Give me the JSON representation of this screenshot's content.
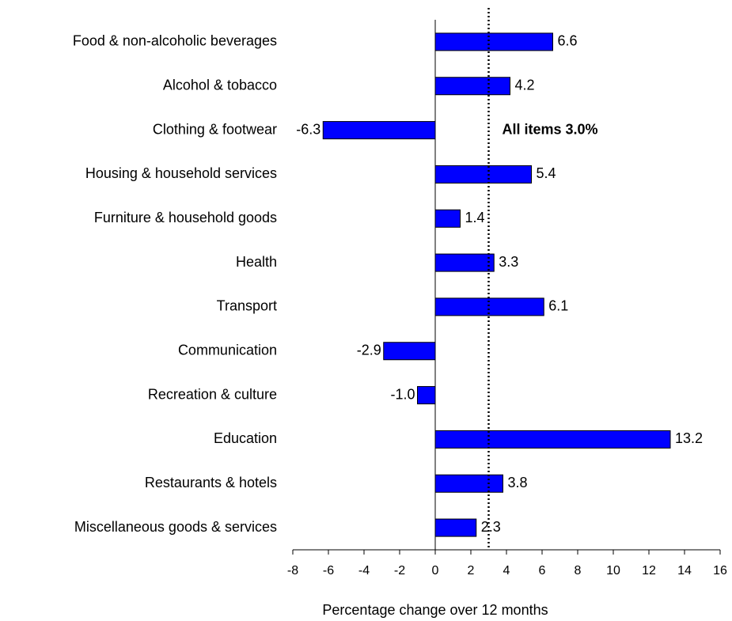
{
  "chart_data": {
    "type": "hbar",
    "categories": [
      "Food & non-alcoholic beverages",
      "Alcohol & tobacco",
      "Clothing & footwear",
      "Housing & household services",
      "Furniture & household goods",
      "Health",
      "Transport",
      "Communication",
      "Recreation & culture",
      "Education",
      "Restaurants & hotels",
      "Miscellaneous goods & services"
    ],
    "values": [
      6.6,
      4.2,
      -6.3,
      5.4,
      1.4,
      3.3,
      6.1,
      -2.9,
      -1,
      13.2,
      3.8,
      2.3
    ],
    "value_labels": [
      "6.6",
      "4.2",
      "-6.3",
      "5.4",
      "1.4",
      "3.3",
      "6.1",
      "-2.9",
      "-1.0",
      "13.2",
      "3.8",
      "2.3"
    ],
    "color": "#0000ff",
    "xlabel": "Percentage change over 12 months",
    "xlim": [
      -8,
      16
    ],
    "xticks": [
      -8,
      -6,
      -4,
      -2,
      0,
      2,
      4,
      6,
      8,
      10,
      12,
      14,
      16
    ],
    "reference": {
      "value": 3,
      "label": "All items 3.0%"
    }
  }
}
